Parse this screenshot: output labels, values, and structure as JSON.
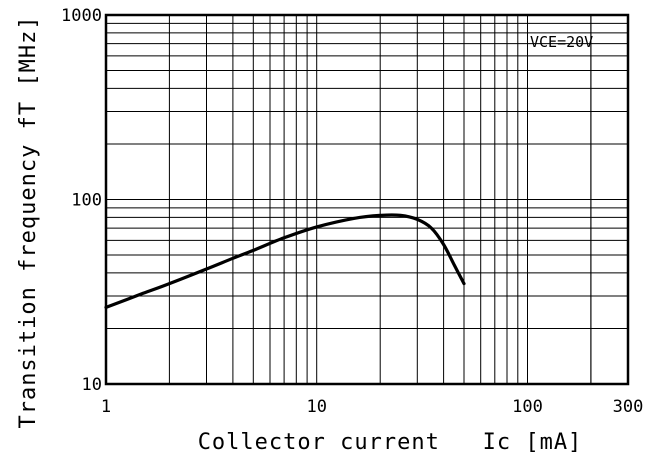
{
  "chart_data": {
    "type": "line",
    "x_scale": "log",
    "y_scale": "log",
    "xlim": [
      1,
      300
    ],
    "ylim": [
      10,
      1000
    ],
    "xlabel": "Collector current   Ic [mA]",
    "ylabel": "Transition frequency fT [MHz]",
    "x_ticks": [
      "1",
      "10",
      "100",
      "300"
    ],
    "x_tick_values": [
      1,
      10,
      100,
      300
    ],
    "y_ticks": [
      "10",
      "100",
      "1000"
    ],
    "y_tick_values": [
      10,
      100,
      1000
    ],
    "grid": true,
    "annotation": "VCE=20V",
    "annotation_placement": "top-right",
    "series": [
      {
        "x": [
          1,
          1.5,
          2,
          3,
          4,
          5,
          7,
          10,
          15,
          20,
          25,
          30,
          35,
          40,
          45,
          50
        ],
        "y": [
          26,
          31,
          35,
          42,
          48,
          53,
          62,
          71,
          79,
          82,
          82,
          78,
          70,
          57,
          44,
          35
        ]
      }
    ]
  }
}
